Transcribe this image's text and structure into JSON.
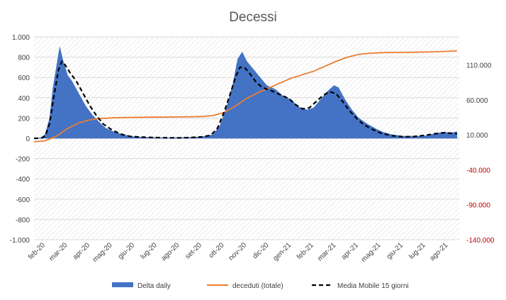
{
  "chart_data": {
    "type": "area",
    "title": "Decessi",
    "x_categories": [
      "feb-20",
      "mar-20",
      "apr-20",
      "mag-20",
      "giu-20",
      "lug-20",
      "ago-20",
      "set-20",
      "ott-20",
      "nov-20",
      "dic-20",
      "gen-21",
      "feb-21",
      "mar-21",
      "apr-21",
      "mag-21",
      "giu-21",
      "lug-21",
      "ago-21"
    ],
    "y_left": {
      "ticks": [
        1000,
        800,
        600,
        400,
        200,
        0,
        -200,
        -400,
        -600,
        -800,
        -1000
      ],
      "tick_labels": [
        "1.000",
        "800",
        "600",
        "400",
        "200",
        "0",
        "-200",
        "-400",
        "-600",
        "-800",
        "-1.000"
      ],
      "range": [
        -1000,
        1000
      ]
    },
    "y_right": {
      "ticks": [
        110000,
        60000,
        10000,
        -40000,
        -90000,
        -140000
      ],
      "tick_labels": [
        "110.000",
        "60.000",
        "10.000",
        "-40.000",
        "-90.000",
        "-140.000"
      ],
      "range": [
        -140000,
        150000
      ],
      "negative_color": "#c00000"
    },
    "grid": true,
    "legend_position": "bottom",
    "series": [
      {
        "name": "Delta daily",
        "type": "area",
        "axis": "left",
        "color": "#4472c4",
        "points": [
          [
            0,
            0
          ],
          [
            0.3,
            5
          ],
          [
            0.5,
            40
          ],
          [
            0.7,
            200
          ],
          [
            0.85,
            500
          ],
          [
            1.0,
            700
          ],
          [
            1.15,
            900
          ],
          [
            1.3,
            760
          ],
          [
            1.5,
            620
          ],
          [
            1.7,
            560
          ],
          [
            1.9,
            480
          ],
          [
            2.1,
            400
          ],
          [
            2.3,
            320
          ],
          [
            2.6,
            230
          ],
          [
            2.9,
            160
          ],
          [
            3.2,
            100
          ],
          [
            3.6,
            60
          ],
          [
            4.0,
            35
          ],
          [
            4.5,
            15
          ],
          [
            5.0,
            10
          ],
          [
            5.5,
            8
          ],
          [
            6.0,
            5
          ],
          [
            6.5,
            8
          ],
          [
            7.0,
            10
          ],
          [
            7.5,
            15
          ],
          [
            8.0,
            35
          ],
          [
            8.3,
            120
          ],
          [
            8.6,
            300
          ],
          [
            8.9,
            550
          ],
          [
            9.1,
            780
          ],
          [
            9.3,
            850
          ],
          [
            9.5,
            760
          ],
          [
            9.8,
            680
          ],
          [
            10.1,
            600
          ],
          [
            10.4,
            520
          ],
          [
            10.8,
            480
          ],
          [
            11.1,
            420
          ],
          [
            11.5,
            380
          ],
          [
            11.8,
            310
          ],
          [
            12.2,
            280
          ],
          [
            12.5,
            300
          ],
          [
            12.8,
            380
          ],
          [
            13.1,
            460
          ],
          [
            13.4,
            520
          ],
          [
            13.6,
            500
          ],
          [
            13.9,
            380
          ],
          [
            14.2,
            280
          ],
          [
            14.5,
            200
          ],
          [
            14.9,
            140
          ],
          [
            15.3,
            90
          ],
          [
            15.6,
            60
          ],
          [
            16.0,
            35
          ],
          [
            16.5,
            22
          ],
          [
            17.0,
            20
          ],
          [
            17.5,
            25
          ],
          [
            17.9,
            45
          ],
          [
            18.3,
            60
          ],
          [
            18.7,
            55
          ],
          [
            18.9,
            65
          ]
        ]
      },
      {
        "name": "deceduti (totale)",
        "type": "line",
        "axis": "right",
        "color": "#ed7d31",
        "points": [
          [
            0,
            0
          ],
          [
            0.5,
            1500
          ],
          [
            1.0,
            8000
          ],
          [
            1.5,
            19000
          ],
          [
            2.0,
            27000
          ],
          [
            2.5,
            31500
          ],
          [
            3.0,
            33300
          ],
          [
            3.5,
            34200
          ],
          [
            4.0,
            34700
          ],
          [
            5.0,
            35100
          ],
          [
            6.0,
            35400
          ],
          [
            7.0,
            35800
          ],
          [
            7.5,
            36100
          ],
          [
            8.0,
            37500
          ],
          [
            8.5,
            42000
          ],
          [
            9.0,
            51000
          ],
          [
            9.5,
            62000
          ],
          [
            10.0,
            70000
          ],
          [
            10.5,
            77000
          ],
          [
            11.0,
            84000
          ],
          [
            11.5,
            91000
          ],
          [
            12.0,
            96000
          ],
          [
            12.5,
            101000
          ],
          [
            13.0,
            108000
          ],
          [
            13.5,
            115000
          ],
          [
            14.0,
            121000
          ],
          [
            14.5,
            125000
          ],
          [
            15.0,
            126600
          ],
          [
            15.5,
            127400
          ],
          [
            16.0,
            127700
          ],
          [
            17.0,
            128000
          ],
          [
            18.0,
            128700
          ],
          [
            18.9,
            130000
          ]
        ]
      },
      {
        "name": "Media Mobile 15 giorni",
        "type": "line",
        "axis": "left",
        "color": "#000000",
        "points": [
          [
            0,
            0
          ],
          [
            0.3,
            0
          ],
          [
            0.5,
            20
          ],
          [
            0.7,
            150
          ],
          [
            0.9,
            430
          ],
          [
            1.1,
            680
          ],
          [
            1.25,
            760
          ],
          [
            1.4,
            720
          ],
          [
            1.6,
            650
          ],
          [
            1.9,
            560
          ],
          [
            2.2,
            440
          ],
          [
            2.5,
            320
          ],
          [
            2.8,
            220
          ],
          [
            3.1,
            140
          ],
          [
            3.5,
            80
          ],
          [
            3.9,
            40
          ],
          [
            4.3,
            18
          ],
          [
            5.0,
            10
          ],
          [
            6.0,
            5
          ],
          [
            6.5,
            4
          ],
          [
            7.0,
            8
          ],
          [
            7.5,
            14
          ],
          [
            7.9,
            30
          ],
          [
            8.2,
            100
          ],
          [
            8.5,
            260
          ],
          [
            8.8,
            460
          ],
          [
            9.0,
            600
          ],
          [
            9.2,
            700
          ],
          [
            9.4,
            700
          ],
          [
            9.6,
            650
          ],
          [
            9.9,
            560
          ],
          [
            10.2,
            500
          ],
          [
            10.6,
            470
          ],
          [
            11.0,
            430
          ],
          [
            11.4,
            390
          ],
          [
            11.7,
            330
          ],
          [
            12.0,
            290
          ],
          [
            12.3,
            300
          ],
          [
            12.6,
            360
          ],
          [
            12.9,
            420
          ],
          [
            13.2,
            460
          ],
          [
            13.5,
            440
          ],
          [
            13.8,
            360
          ],
          [
            14.1,
            270
          ],
          [
            14.4,
            200
          ],
          [
            14.7,
            140
          ],
          [
            15.1,
            90
          ],
          [
            15.5,
            50
          ],
          [
            16.0,
            25
          ],
          [
            16.5,
            15
          ],
          [
            17.0,
            18
          ],
          [
            17.5,
            30
          ],
          [
            17.9,
            45
          ],
          [
            18.3,
            55
          ],
          [
            18.6,
            50
          ],
          [
            18.9,
            45
          ]
        ]
      }
    ]
  }
}
